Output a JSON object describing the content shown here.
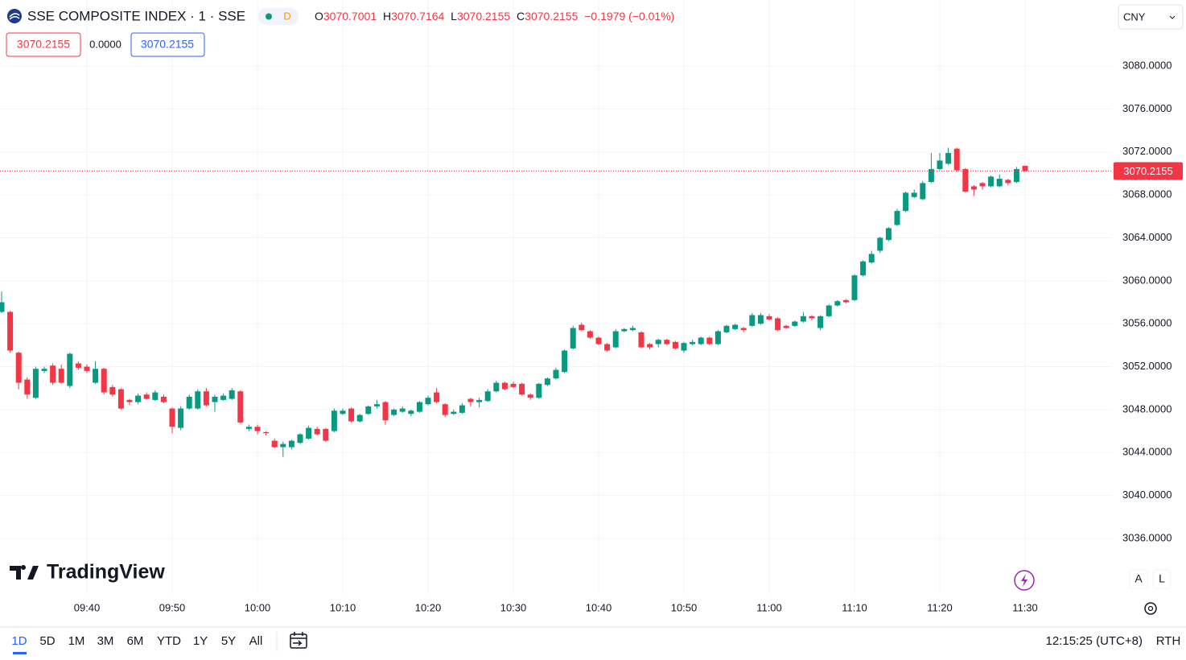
{
  "header": {
    "symbol": "SSE COMPOSITE INDEX · 1 · SSE",
    "market_badge": "D",
    "ohlc_letters": [
      "O",
      "H",
      "L",
      "C"
    ],
    "change": {
      "value": -0.1979,
      "label": "−0.1979 (−0.01%)"
    },
    "quote_boxes": [
      "3070.2155",
      "0.0000",
      "3070.2155"
    ],
    "currency": "CNY"
  },
  "watermark": "TradingView",
  "scale_buttons": [
    "A",
    "L"
  ],
  "footer": {
    "ranges": [
      "1D",
      "5D",
      "1M",
      "3M",
      "6M",
      "YTD",
      "1Y",
      "5Y",
      "All"
    ],
    "clock": "12:15:25 (UTC+8)",
    "session": "RTH"
  },
  "chart_data": {
    "type": "candlestick",
    "up_color": "#089981",
    "down_color": "#f23645",
    "grid": true,
    "last_price_line": true,
    "xlim": [
      "09:30",
      "11:40"
    ],
    "xticks": [
      "09:40",
      "09:50",
      "10:00",
      "10:10",
      "10:20",
      "10:30",
      "10:40",
      "10:50",
      "11:00",
      "11:10",
      "11:20",
      "11:30"
    ],
    "ylim": [
      3030.9,
      3086.15
    ],
    "yticks": [
      {
        "value": 3036,
        "label": "3036.0000"
      },
      {
        "value": 3040,
        "label": "3040.0000"
      },
      {
        "value": 3044,
        "label": "3044.0000"
      },
      {
        "value": 3048,
        "label": "3048.0000"
      },
      {
        "value": 3052,
        "label": "3052.0000"
      },
      {
        "value": 3056,
        "label": "3056.0000"
      },
      {
        "value": 3060,
        "label": "3060.0000"
      },
      {
        "value": 3064,
        "label": "3064.0000"
      },
      {
        "value": 3068,
        "label": "3068.0000"
      },
      {
        "value": 3072,
        "label": "3072.0000"
      },
      {
        "value": 3076,
        "label": "3076.0000"
      },
      {
        "value": 3080,
        "label": "3080.0000"
      }
    ],
    "x": [
      "09:30",
      "09:31",
      "09:32",
      "09:33",
      "09:34",
      "09:35",
      "09:36",
      "09:37",
      "09:38",
      "09:39",
      "09:40",
      "09:41",
      "09:42",
      "09:43",
      "09:44",
      "09:45",
      "09:46",
      "09:47",
      "09:48",
      "09:49",
      "09:50",
      "09:51",
      "09:52",
      "09:53",
      "09:54",
      "09:55",
      "09:56",
      "09:57",
      "09:58",
      "09:59",
      "10:00",
      "10:01",
      "10:02",
      "10:03",
      "10:04",
      "10:05",
      "10:06",
      "10:07",
      "10:08",
      "10:09",
      "10:10",
      "10:11",
      "10:12",
      "10:13",
      "10:14",
      "10:15",
      "10:16",
      "10:17",
      "10:18",
      "10:19",
      "10:20",
      "10:21",
      "10:22",
      "10:23",
      "10:24",
      "10:25",
      "10:26",
      "10:27",
      "10:28",
      "10:29",
      "10:30",
      "10:31",
      "10:32",
      "10:33",
      "10:34",
      "10:35",
      "10:36",
      "10:37",
      "10:38",
      "10:39",
      "10:40",
      "10:41",
      "10:42",
      "10:43",
      "10:44",
      "10:45",
      "10:46",
      "10:47",
      "10:48",
      "10:49",
      "10:50",
      "10:51",
      "10:52",
      "10:53",
      "10:54",
      "10:55",
      "10:56",
      "10:57",
      "10:58",
      "10:59",
      "11:00",
      "11:01",
      "11:02",
      "11:03",
      "11:04",
      "11:05",
      "11:06",
      "11:07",
      "11:08",
      "11:09",
      "11:10",
      "11:11",
      "11:12",
      "11:13",
      "11:14",
      "11:15",
      "11:16",
      "11:17",
      "11:18",
      "11:19",
      "11:20",
      "11:21",
      "11:22",
      "11:23",
      "11:24",
      "11:25",
      "11:26",
      "11:27",
      "11:28",
      "11:29",
      "11:30"
    ],
    "open": [
      3057.1,
      3057.1,
      3053.3,
      3050.8,
      3049.1,
      3051.6,
      3052.1,
      3051.8,
      3050.2,
      3052.3,
      3052.0,
      3050.5,
      3051.8,
      3050.1,
      3049.9,
      3048.9,
      3048.7,
      3049.4,
      3048.9,
      3049.2,
      3048.1,
      3046.3,
      3048.1,
      3048.1,
      3049.7,
      3048.7,
      3048.9,
      3049.0,
      3049.7,
      3046.2,
      3046.4,
      3045.9,
      3045.1,
      3044.5,
      3044.5,
      3044.9,
      3045.3,
      3046.2,
      3046.2,
      3046.0,
      3047.6,
      3048.1,
      3046.9,
      3047.6,
      3048.3,
      3048.7,
      3047.5,
      3047.8,
      3047.6,
      3047.8,
      3048.5,
      3049.6,
      3048.5,
      3047.6,
      3047.7,
      3049.0,
      3048.7,
      3048.8,
      3049.7,
      3050.5,
      3050.4,
      3050.4,
      3049.4,
      3049.1,
      3050.3,
      3050.9,
      3051.5,
      3053.7,
      3055.9,
      3055.3,
      3054.7,
      3054.1,
      3053.8,
      3055.3,
      3055.4,
      3055.2,
      3054.1,
      3054.1,
      3054.5,
      3054.3,
      3053.5,
      3054.1,
      3054.1,
      3054.7,
      3054.1,
      3055.2,
      3055.5,
      3055.6,
      3055.8,
      3056.0,
      3056.7,
      3056.5,
      3055.8,
      3055.8,
      3056.2,
      3056.7,
      3055.6,
      3056.7,
      3057.7,
      3058.2,
      3058.2,
      3060.5,
      3061.7,
      3062.8,
      3063.8,
      3065.2,
      3066.5,
      3067.8,
      3067.6,
      3069.2,
      3070.4,
      3070.9,
      3072.3,
      3070.4,
      3068.8,
      3069.1,
      3068.8,
      3068.8,
      3069.4,
      3069.2,
      3070.7001
    ],
    "high": [
      3059.0,
      3057.2,
      3053.4,
      3051.0,
      3052.0,
      3052.0,
      3052.3,
      3052.2,
      3053.3,
      3052.5,
      3052.2,
      3052.5,
      3051.9,
      3050.3,
      3050.0,
      3049.0,
      3049.5,
      3049.6,
      3049.8,
      3049.4,
      3048.2,
      3048.3,
      3049.4,
      3049.9,
      3050.0,
      3049.4,
      3049.5,
      3050.0,
      3049.8,
      3046.6,
      3046.6,
      3046.0,
      3045.3,
      3045.0,
      3045.2,
      3045.8,
      3046.5,
      3046.4,
      3046.3,
      3048.1,
      3048.1,
      3048.2,
      3047.6,
      3048.4,
      3048.9,
      3048.8,
      3048.1,
      3048.3,
      3048.0,
      3048.8,
      3049.3,
      3050.0,
      3048.6,
      3048.0,
      3048.6,
      3049.1,
      3049.1,
      3049.9,
      3050.7,
      3050.6,
      3050.6,
      3050.5,
      3049.5,
      3050.5,
      3051.0,
      3051.9,
      3053.6,
      3055.8,
      3056.1,
      3055.4,
      3054.8,
      3054.2,
      3055.5,
      3055.6,
      3055.8,
      3055.3,
      3054.2,
      3054.6,
      3054.6,
      3054.4,
      3054.3,
      3054.5,
      3054.8,
      3054.8,
      3055.4,
      3055.9,
      3056.0,
      3055.7,
      3057.0,
      3057.0,
      3056.9,
      3056.6,
      3055.9,
      3056.3,
      3057.1,
      3056.8,
      3056.8,
      3057.8,
      3058.2,
      3058.3,
      3060.6,
      3061.9,
      3062.8,
      3064.1,
      3065.0,
      3066.7,
      3068.3,
      3068.5,
      3069.3,
      3071.9,
      3071.9,
      3072.4,
      3072.4,
      3070.5,
      3068.9,
      3069.2,
      3069.8,
      3069.9,
      3069.5,
      3070.6,
      3070.7164
    ],
    "low": [
      3057.0,
      3053.3,
      3049.9,
      3049.0,
      3049.0,
      3051.4,
      3050.3,
      3050.4,
      3050.0,
      3051.7,
      3051.4,
      3050.4,
      3049.4,
      3049.2,
      3048.0,
      3048.4,
      3048.5,
      3048.9,
      3048.8,
      3048.6,
      3045.8,
      3046.1,
      3048.0,
      3048.0,
      3048.3,
      3047.8,
      3048.8,
      3048.9,
      3046.7,
      3046.0,
      3045.7,
      3045.6,
      3044.4,
      3043.6,
      3044.3,
      3044.8,
      3045.2,
      3045.6,
      3045.0,
      3045.9,
      3047.5,
      3046.8,
      3046.8,
      3047.5,
      3048.1,
      3046.6,
      3047.4,
      3047.7,
      3047.4,
      3047.7,
      3048.4,
      3048.6,
      3047.3,
      3047.5,
      3047.6,
      3048.3,
      3048.2,
      3048.7,
      3049.6,
      3049.8,
      3050.0,
      3049.3,
      3048.9,
      3049.0,
      3050.2,
      3050.8,
      3051.4,
      3053.6,
      3055.3,
      3054.6,
      3054.0,
      3053.4,
      3053.7,
      3055.2,
      3055.3,
      3053.7,
      3053.6,
      3053.8,
      3054.0,
      3053.6,
      3053.3,
      3054.0,
      3054.0,
      3054.0,
      3054.0,
      3055.1,
      3055.4,
      3055.2,
      3055.7,
      3055.9,
      3056.3,
      3055.3,
      3055.5,
      3055.7,
      3056.1,
      3056.3,
      3055.4,
      3056.6,
      3057.6,
      3057.9,
      3058.1,
      3060.4,
      3061.6,
      3062.6,
      3063.7,
      3065.1,
      3066.4,
      3067.7,
      3067.5,
      3069.1,
      3070.3,
      3070.8,
      3070.2,
      3068.2,
      3067.9,
      3068.5,
      3068.7,
      3068.7,
      3068.9,
      3069.1,
      3070.2155
    ],
    "close": [
      3058.0,
      3053.5,
      3050.5,
      3049.4,
      3051.8,
      3051.8,
      3050.5,
      3050.5,
      3053.2,
      3051.9,
      3051.6,
      3051.8,
      3049.6,
      3049.4,
      3048.1,
      3048.7,
      3049.3,
      3049.0,
      3049.6,
      3048.7,
      3046.4,
      3048.1,
      3049.2,
      3049.7,
      3048.4,
      3049.2,
      3049.3,
      3049.8,
      3046.8,
      3046.4,
      3046.0,
      3045.8,
      3044.5,
      3044.8,
      3045.1,
      3045.7,
      3046.3,
      3045.7,
      3045.1,
      3047.9,
      3047.9,
      3046.9,
      3047.5,
      3048.3,
      3048.5,
      3047.0,
      3048.0,
      3048.1,
      3047.9,
      3048.7,
      3049.1,
      3048.7,
      3047.5,
      3047.8,
      3048.4,
      3048.7,
      3048.9,
      3049.7,
      3050.5,
      3049.9,
      3050.1,
      3049.4,
      3049.1,
      3050.4,
      3050.9,
      3051.7,
      3053.5,
      3055.6,
      3055.4,
      3054.7,
      3054.1,
      3053.5,
      3055.3,
      3055.5,
      3055.6,
      3053.8,
      3053.8,
      3054.5,
      3054.1,
      3053.7,
      3054.2,
      3054.3,
      3054.7,
      3054.1,
      3055.3,
      3055.8,
      3055.9,
      3055.4,
      3056.8,
      3056.8,
      3056.4,
      3055.4,
      3055.6,
      3056.2,
      3056.7,
      3056.5,
      3056.7,
      3057.7,
      3058.1,
      3058.0,
      3060.5,
      3061.8,
      3062.5,
      3064.0,
      3064.9,
      3066.5,
      3068.2,
      3068.2,
      3069.1,
      3070.4,
      3071.2,
      3071.9,
      3070.3,
      3068.3,
      3068.5,
      3068.8,
      3069.7,
      3069.5,
      3069.1,
      3070.4,
      3070.2155
    ]
  }
}
